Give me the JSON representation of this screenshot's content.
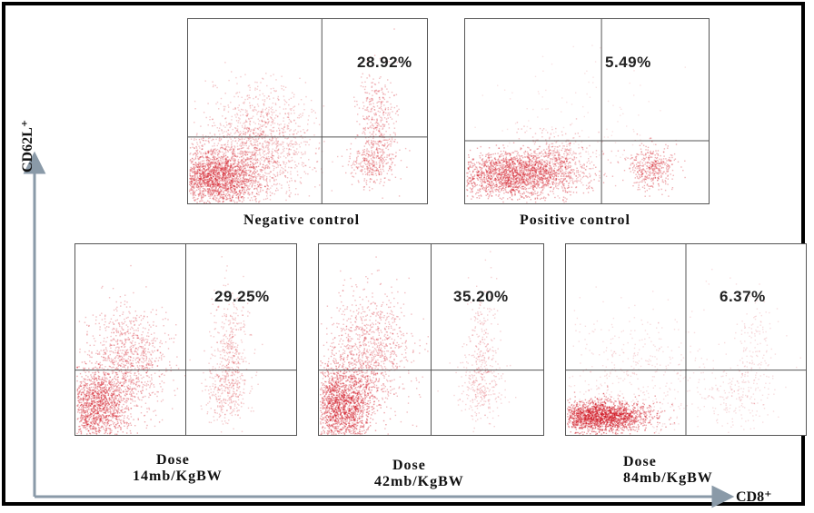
{
  "chart_data": {
    "type": "scatter",
    "axes": {
      "x_label": "CD8⁺",
      "y_label": "CD62L⁺"
    },
    "plots": [
      {
        "id": "neg",
        "percentage": "28.92%",
        "caption_lines": [
          "Negative control"
        ]
      },
      {
        "id": "pos",
        "percentage": "5.49%",
        "caption_lines": [
          "Positive control"
        ]
      },
      {
        "id": "d14",
        "percentage": "29.25%",
        "caption_lines": [
          "Dose",
          "14mb/KgBW"
        ]
      },
      {
        "id": "d42",
        "percentage": "35.20%",
        "caption_lines": [
          "Dose",
          "42mb/KgBW"
        ]
      },
      {
        "id": "d84",
        "percentage": "6.37%",
        "caption_lines": [
          "Dose",
          "84mb/KgBW"
        ]
      }
    ],
    "point_color": "#d0101c",
    "grid": false
  }
}
